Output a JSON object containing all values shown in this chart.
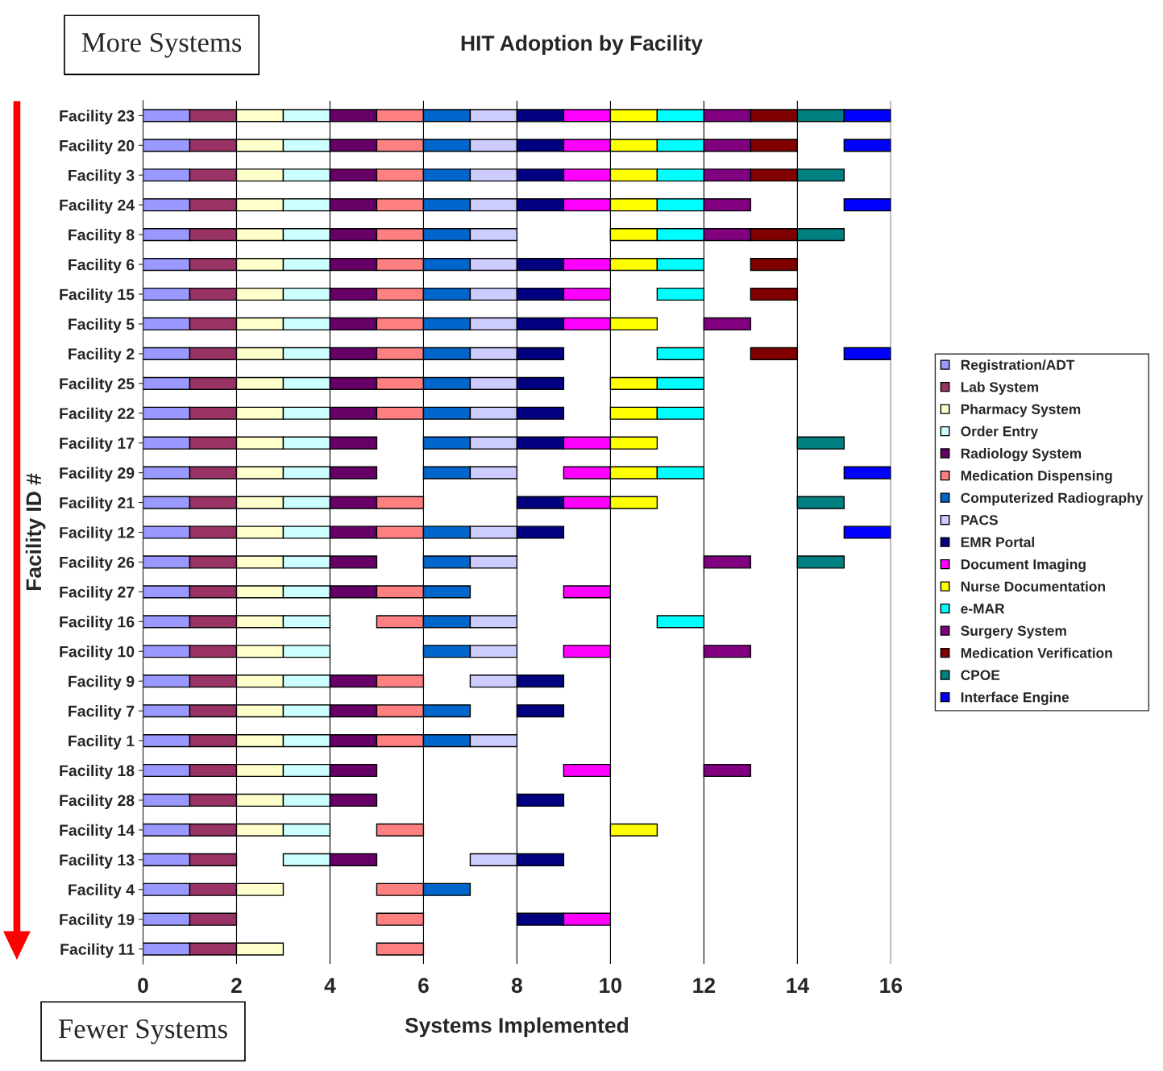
{
  "chart_data": {
    "type": "bar",
    "orientation": "horizontal",
    "title": "HIT Adoption by Facility",
    "xlabel": "Systems Implemented",
    "ylabel": "Facility ID #",
    "annotations": [
      "More Systems",
      "Fewer Systems"
    ],
    "categories": [
      "Facility 23",
      "Facility 20",
      "Facility 3",
      "Facility 24",
      "Facility 8",
      "Facility 6",
      "Facility 15",
      "Facility 5",
      "Facility 2",
      "Facility 25",
      "Facility 22",
      "Facility 17",
      "Facility 29",
      "Facility 21",
      "Facility 12",
      "Facility 26",
      "Facility 27",
      "Facility 16",
      "Facility 10",
      "Facility 9",
      "Facility 7",
      "Facility 1",
      "Facility 18",
      "Facility 28",
      "Facility 14",
      "Facility 13",
      "Facility 4",
      "Facility 19",
      "Facility 11"
    ],
    "xlim": [
      0,
      16
    ],
    "xticks": [
      0,
      2,
      4,
      6,
      8,
      10,
      12,
      14,
      16
    ],
    "grid": "x",
    "legend": "right",
    "series": [
      {
        "name": "Registration/ADT",
        "color": "#9999ff",
        "base": [
          0,
          0,
          0,
          0,
          0,
          0,
          0,
          0,
          0,
          0,
          0,
          0,
          0,
          0,
          0,
          0,
          0,
          0,
          0,
          0,
          0,
          0,
          0,
          0,
          0,
          0,
          0,
          0,
          0
        ],
        "values": [
          1,
          1,
          1,
          1,
          1,
          1,
          1,
          1,
          1,
          1,
          1,
          1,
          1,
          1,
          1,
          1,
          1,
          1,
          1,
          1,
          1,
          1,
          1,
          1,
          1,
          1,
          1,
          1,
          1
        ]
      },
      {
        "name": "Lab System",
        "color": "#993366",
        "base": [
          1,
          1,
          1,
          1,
          1,
          1,
          1,
          1,
          1,
          1,
          1,
          1,
          1,
          1,
          1,
          1,
          1,
          1,
          1,
          1,
          1,
          1,
          1,
          1,
          1,
          1,
          1,
          1,
          1
        ],
        "values": [
          1,
          1,
          1,
          1,
          1,
          1,
          1,
          1,
          1,
          1,
          1,
          1,
          1,
          1,
          1,
          1,
          1,
          1,
          1,
          1,
          1,
          1,
          1,
          1,
          1,
          1,
          1,
          1,
          1
        ]
      },
      {
        "name": "Pharmacy System",
        "color": "#ffffcc",
        "base": [
          2,
          2,
          2,
          2,
          2,
          2,
          2,
          2,
          2,
          2,
          2,
          2,
          2,
          2,
          2,
          2,
          2,
          2,
          2,
          2,
          2,
          2,
          2,
          2,
          2,
          null,
          2,
          null,
          2
        ],
        "values": [
          1,
          1,
          1,
          1,
          1,
          1,
          1,
          1,
          1,
          1,
          1,
          1,
          1,
          1,
          1,
          1,
          1,
          1,
          1,
          1,
          1,
          1,
          1,
          1,
          1,
          null,
          1,
          null,
          1
        ]
      },
      {
        "name": "Order Entry",
        "color": "#ccffff",
        "base": [
          3,
          3,
          3,
          3,
          3,
          3,
          3,
          3,
          3,
          3,
          3,
          3,
          3,
          3,
          3,
          3,
          3,
          3,
          3,
          3,
          3,
          3,
          3,
          3,
          3,
          3,
          null,
          null,
          null
        ],
        "values": [
          1,
          1,
          1,
          1,
          1,
          1,
          1,
          1,
          1,
          1,
          1,
          1,
          1,
          1,
          1,
          1,
          1,
          1,
          1,
          1,
          1,
          1,
          1,
          1,
          1,
          1,
          null,
          null,
          null
        ]
      },
      {
        "name": "Radiology System",
        "color": "#660066",
        "base": [
          4,
          4,
          4,
          4,
          4,
          4,
          4,
          4,
          4,
          4,
          4,
          4,
          4,
          4,
          4,
          4,
          4,
          null,
          null,
          4,
          4,
          4,
          4,
          4,
          null,
          4,
          null,
          null,
          null
        ],
        "values": [
          1,
          1,
          1,
          1,
          1,
          1,
          1,
          1,
          1,
          1,
          1,
          1,
          1,
          1,
          1,
          1,
          1,
          null,
          null,
          1,
          1,
          1,
          1,
          1,
          null,
          1,
          null,
          null,
          null
        ]
      },
      {
        "name": "Medication Dispensing",
        "color": "#ff8080",
        "base": [
          5,
          5,
          5,
          5,
          5,
          5,
          5,
          5,
          5,
          5,
          5,
          null,
          null,
          5,
          5,
          null,
          5,
          5,
          null,
          5,
          5,
          5,
          null,
          null,
          5,
          null,
          5,
          5,
          5
        ],
        "values": [
          1,
          1,
          1,
          1,
          1,
          1,
          1,
          1,
          1,
          1,
          1,
          null,
          null,
          1,
          1,
          null,
          1,
          1,
          null,
          1,
          1,
          1,
          null,
          null,
          1,
          null,
          1,
          1,
          1
        ]
      },
      {
        "name": "Computerized Radiography",
        "color": "#0066cc",
        "base": [
          6,
          6,
          6,
          6,
          6,
          6,
          6,
          6,
          6,
          6,
          6,
          6,
          6,
          null,
          6,
          6,
          6,
          6,
          6,
          null,
          6,
          6,
          null,
          null,
          null,
          null,
          6,
          null,
          null
        ],
        "values": [
          1,
          1,
          1,
          1,
          1,
          1,
          1,
          1,
          1,
          1,
          1,
          1,
          1,
          null,
          1,
          1,
          1,
          1,
          1,
          null,
          1,
          1,
          null,
          null,
          null,
          null,
          1,
          null,
          null
        ]
      },
      {
        "name": "PACS",
        "color": "#ccccff",
        "base": [
          7,
          7,
          7,
          7,
          7,
          7,
          7,
          7,
          7,
          7,
          7,
          7,
          7,
          null,
          7,
          7,
          null,
          7,
          7,
          7,
          null,
          7,
          null,
          null,
          null,
          7,
          null,
          null,
          null
        ],
        "values": [
          1,
          1,
          1,
          1,
          1,
          1,
          1,
          1,
          1,
          1,
          1,
          1,
          1,
          null,
          1,
          1,
          null,
          1,
          1,
          1,
          null,
          1,
          null,
          null,
          null,
          1,
          null,
          null,
          null
        ]
      },
      {
        "name": "EMR Portal",
        "color": "#000080",
        "base": [
          8,
          8,
          8,
          8,
          null,
          8,
          8,
          8,
          8,
          8,
          8,
          8,
          null,
          8,
          8,
          null,
          null,
          null,
          null,
          8,
          8,
          null,
          null,
          8,
          null,
          8,
          null,
          8,
          null
        ],
        "values": [
          1,
          1,
          1,
          1,
          null,
          1,
          1,
          1,
          1,
          1,
          1,
          1,
          null,
          1,
          1,
          null,
          null,
          null,
          null,
          1,
          1,
          null,
          null,
          1,
          null,
          1,
          null,
          1,
          null
        ]
      },
      {
        "name": "Document Imaging",
        "color": "#ff00ff",
        "base": [
          9,
          9,
          9,
          9,
          null,
          9,
          9,
          9,
          null,
          null,
          null,
          9,
          9,
          9,
          null,
          null,
          9,
          null,
          9,
          null,
          null,
          null,
          9,
          null,
          null,
          null,
          null,
          9,
          null
        ],
        "values": [
          1,
          1,
          1,
          1,
          null,
          1,
          1,
          1,
          null,
          null,
          null,
          1,
          1,
          1,
          null,
          null,
          1,
          null,
          1,
          null,
          null,
          null,
          1,
          null,
          null,
          null,
          null,
          1,
          null
        ]
      },
      {
        "name": "Nurse Documentation",
        "color": "#ffff00",
        "base": [
          10,
          10,
          10,
          10,
          10,
          10,
          null,
          10,
          null,
          10,
          10,
          10,
          10,
          10,
          null,
          null,
          null,
          null,
          null,
          null,
          null,
          null,
          null,
          null,
          10,
          null,
          null,
          null,
          null
        ],
        "values": [
          1,
          1,
          1,
          1,
          1,
          1,
          null,
          1,
          null,
          1,
          1,
          1,
          1,
          1,
          null,
          null,
          null,
          null,
          null,
          null,
          null,
          null,
          null,
          null,
          1,
          null,
          null,
          null,
          null
        ]
      },
      {
        "name": "e-MAR",
        "color": "#00ffff",
        "base": [
          11,
          11,
          11,
          11,
          11,
          11,
          11,
          null,
          11,
          11,
          11,
          null,
          11,
          null,
          null,
          null,
          null,
          11,
          null,
          null,
          null,
          null,
          null,
          null,
          null,
          null,
          null,
          null,
          null
        ],
        "values": [
          1,
          1,
          1,
          1,
          1,
          1,
          1,
          null,
          1,
          1,
          1,
          null,
          1,
          null,
          null,
          null,
          null,
          1,
          null,
          null,
          null,
          null,
          null,
          null,
          null,
          null,
          null,
          null,
          null
        ]
      },
      {
        "name": "Surgery System",
        "color": "#800080",
        "base": [
          12,
          12,
          12,
          12,
          12,
          null,
          null,
          12,
          null,
          null,
          null,
          null,
          null,
          null,
          null,
          12,
          null,
          null,
          12,
          null,
          null,
          null,
          12,
          null,
          null,
          null,
          null,
          null,
          null
        ],
        "values": [
          1,
          1,
          1,
          1,
          1,
          null,
          null,
          1,
          null,
          null,
          null,
          null,
          null,
          null,
          null,
          1,
          null,
          null,
          1,
          null,
          null,
          null,
          1,
          null,
          null,
          null,
          null,
          null,
          null
        ]
      },
      {
        "name": "Medication Verification",
        "color": "#800000",
        "base": [
          13,
          13,
          13,
          null,
          13,
          13,
          13,
          null,
          13,
          null,
          null,
          null,
          null,
          null,
          null,
          null,
          null,
          null,
          null,
          null,
          null,
          null,
          null,
          null,
          null,
          null,
          null,
          null,
          null
        ],
        "values": [
          1,
          1,
          1,
          null,
          1,
          1,
          1,
          null,
          1,
          null,
          null,
          null,
          null,
          null,
          null,
          null,
          null,
          null,
          null,
          null,
          null,
          null,
          null,
          null,
          null,
          null,
          null,
          null,
          null
        ]
      },
      {
        "name": "CPOE",
        "color": "#008080",
        "base": [
          14,
          null,
          14,
          null,
          14,
          null,
          null,
          null,
          null,
          null,
          null,
          14,
          null,
          14,
          null,
          14,
          null,
          null,
          null,
          null,
          null,
          null,
          null,
          null,
          null,
          null,
          null,
          null,
          null
        ],
        "values": [
          1,
          null,
          1,
          null,
          1,
          null,
          null,
          null,
          null,
          null,
          null,
          1,
          null,
          1,
          null,
          1,
          null,
          null,
          null,
          null,
          null,
          null,
          null,
          null,
          null,
          null,
          null,
          null,
          null
        ]
      },
      {
        "name": "Interface Engine",
        "color": "#0000ff",
        "base": [
          15,
          15,
          null,
          15,
          null,
          null,
          null,
          null,
          15,
          null,
          null,
          null,
          15,
          null,
          15,
          null,
          null,
          null,
          null,
          null,
          null,
          null,
          null,
          null,
          null,
          null,
          null,
          null,
          null
        ],
        "values": [
          1,
          1,
          null,
          1,
          null,
          null,
          null,
          null,
          1,
          null,
          null,
          null,
          1,
          null,
          1,
          null,
          null,
          null,
          null,
          null,
          null,
          null,
          null,
          null,
          null,
          null,
          null,
          null,
          null
        ]
      }
    ]
  }
}
